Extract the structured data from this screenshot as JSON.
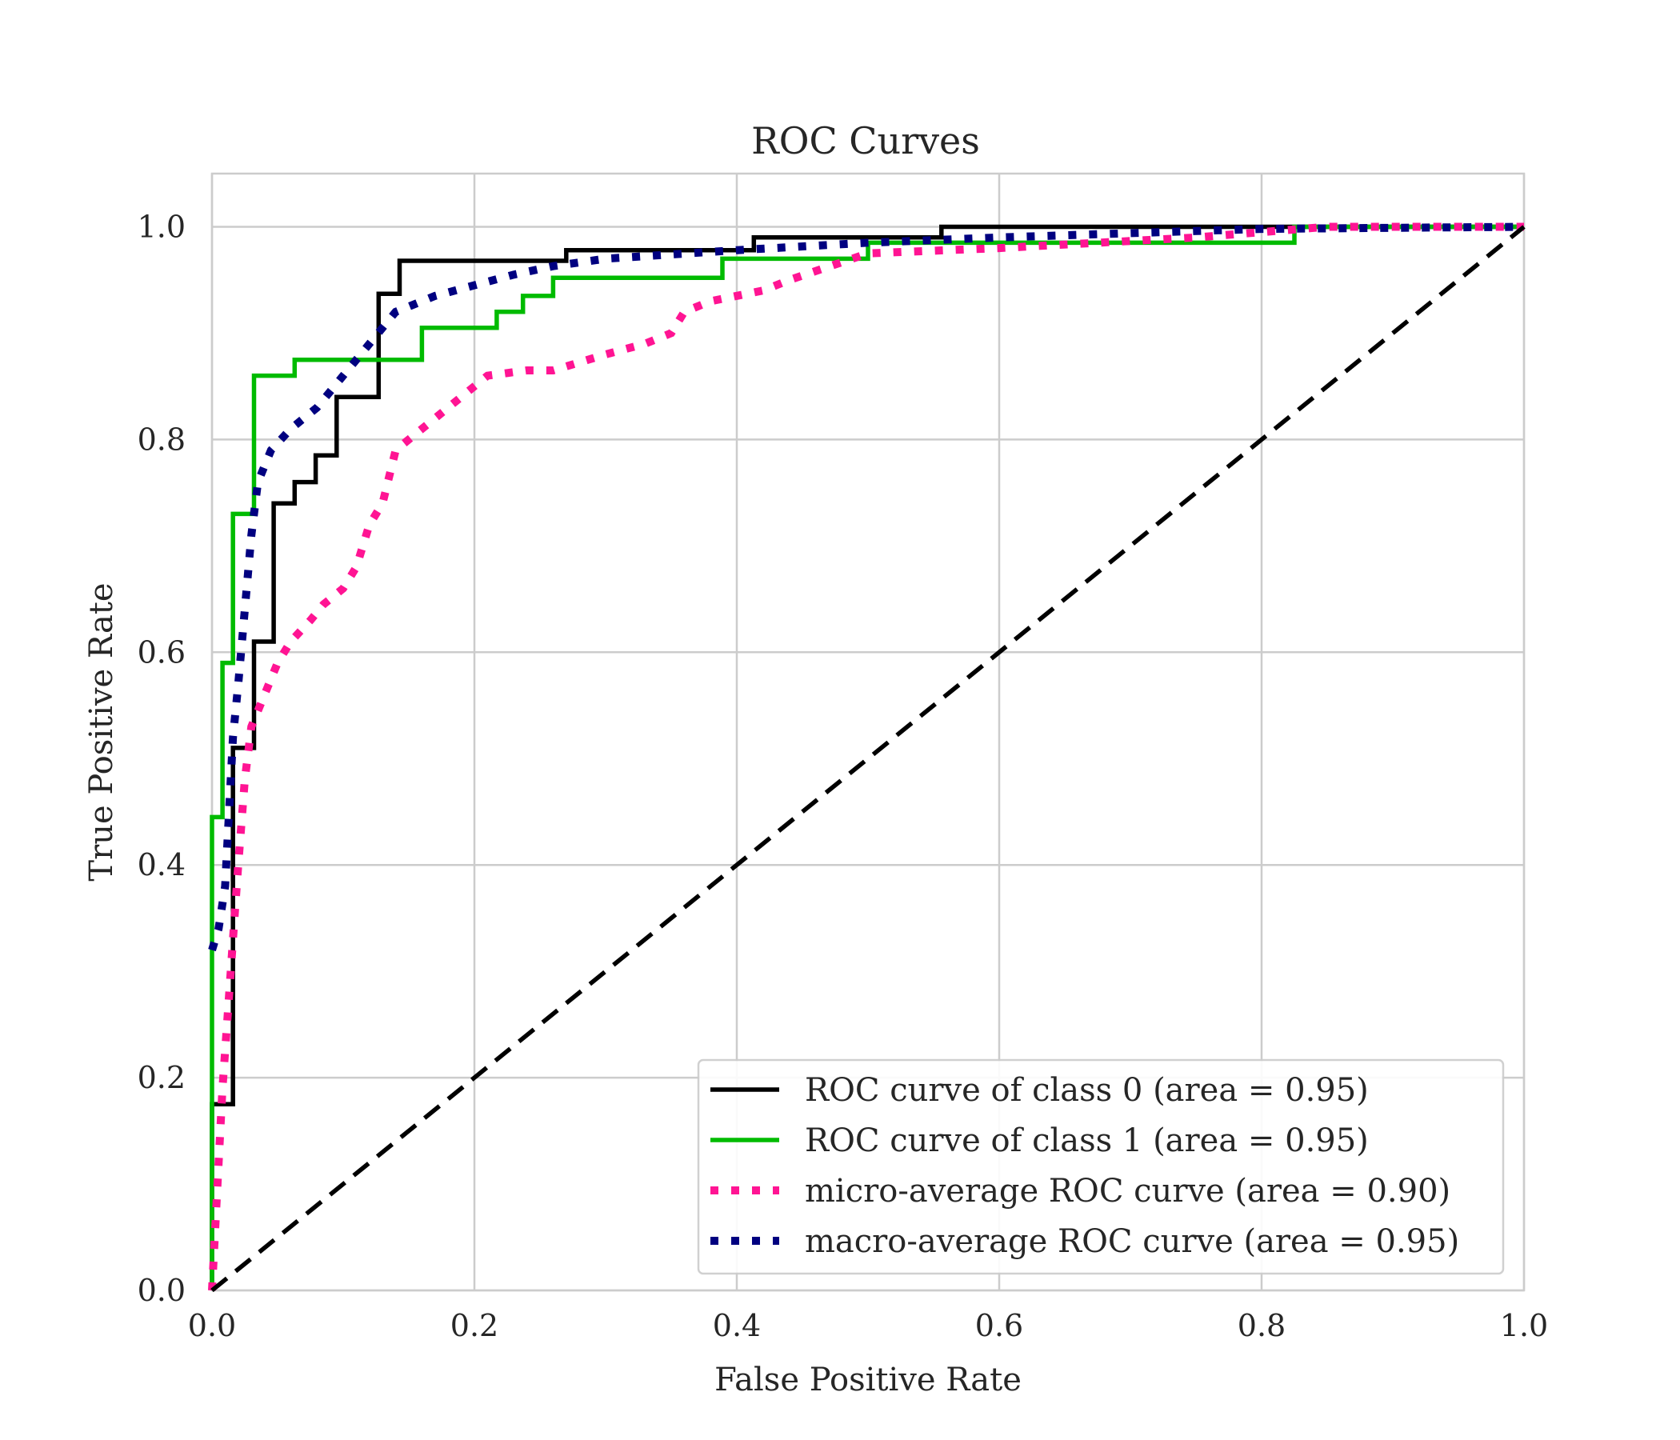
{
  "chart_data": {
    "type": "line",
    "title": "ROC Curves",
    "xlabel": "False Positive Rate",
    "ylabel": "True Positive Rate",
    "xlim": [
      0.0,
      1.0
    ],
    "ylim": [
      0.0,
      1.05
    ],
    "xticks": [
      "0.0",
      "0.2",
      "0.4",
      "0.6",
      "0.8",
      "1.0"
    ],
    "yticks": [
      "0.0",
      "0.2",
      "0.4",
      "0.6",
      "0.8",
      "1.0"
    ],
    "grid": true,
    "legend_position": "lower-right",
    "series": [
      {
        "name": "ROC curve of class 0 (area = 0.95)",
        "color": "#000000",
        "style": "solid",
        "x": [
          0.0,
          0.0,
          0.016,
          0.016,
          0.016,
          0.032,
          0.032,
          0.047,
          0.047,
          0.063,
          0.063,
          0.079,
          0.079,
          0.095,
          0.095,
          0.127,
          0.127,
          0.143,
          0.143,
          0.27,
          0.27,
          0.413,
          0.413,
          0.556,
          0.556,
          1.0
        ],
        "y": [
          0.0,
          0.175,
          0.175,
          0.51,
          0.51,
          0.51,
          0.61,
          0.61,
          0.74,
          0.74,
          0.76,
          0.76,
          0.785,
          0.785,
          0.84,
          0.84,
          0.937,
          0.937,
          0.968,
          0.968,
          0.978,
          0.978,
          0.99,
          0.99,
          1.0,
          1.0
        ]
      },
      {
        "name": "ROC curve of class 1 (area = 0.95)",
        "color": "#00bb00",
        "style": "solid",
        "x": [
          0.0,
          0.0,
          0.008,
          0.008,
          0.016,
          0.016,
          0.032,
          0.032,
          0.063,
          0.063,
          0.16,
          0.16,
          0.217,
          0.217,
          0.237,
          0.237,
          0.26,
          0.26,
          0.389,
          0.389,
          0.5,
          0.5,
          0.825,
          0.825,
          1.0
        ],
        "y": [
          0.0,
          0.445,
          0.445,
          0.59,
          0.59,
          0.73,
          0.73,
          0.86,
          0.86,
          0.875,
          0.875,
          0.905,
          0.905,
          0.92,
          0.92,
          0.935,
          0.935,
          0.952,
          0.952,
          0.97,
          0.97,
          0.985,
          0.985,
          1.0,
          1.0
        ]
      },
      {
        "name": "micro-average ROC curve (area = 0.90)",
        "color": "#ff1493",
        "style": "dotted",
        "x": [
          0.0,
          0.008,
          0.012,
          0.016,
          0.02,
          0.025,
          0.03,
          0.04,
          0.05,
          0.06,
          0.075,
          0.085,
          0.1,
          0.11,
          0.12,
          0.13,
          0.14,
          0.15,
          0.16,
          0.18,
          0.2,
          0.21,
          0.24,
          0.26,
          0.3,
          0.33,
          0.35,
          0.36,
          0.38,
          0.42,
          0.44,
          0.5,
          0.6,
          0.75,
          0.85,
          1.0
        ],
        "y": [
          0.0,
          0.19,
          0.26,
          0.33,
          0.4,
          0.48,
          0.53,
          0.56,
          0.59,
          0.61,
          0.63,
          0.645,
          0.66,
          0.68,
          0.72,
          0.74,
          0.79,
          0.8,
          0.81,
          0.83,
          0.85,
          0.86,
          0.865,
          0.865,
          0.88,
          0.89,
          0.9,
          0.92,
          0.93,
          0.94,
          0.95,
          0.975,
          0.98,
          0.99,
          1.0,
          1.0
        ]
      },
      {
        "name": "macro-average ROC curve (area = 0.95)",
        "color": "#000080",
        "style": "dotted",
        "x": [
          0.0,
          0.005,
          0.01,
          0.013,
          0.016,
          0.02,
          0.025,
          0.03,
          0.035,
          0.045,
          0.06,
          0.08,
          0.1,
          0.12,
          0.14,
          0.17,
          0.2,
          0.23,
          0.26,
          0.3,
          0.4,
          0.5,
          0.6,
          0.8,
          1.0
        ],
        "y": [
          0.32,
          0.34,
          0.38,
          0.45,
          0.52,
          0.57,
          0.64,
          0.71,
          0.76,
          0.79,
          0.81,
          0.83,
          0.86,
          0.89,
          0.92,
          0.935,
          0.945,
          0.955,
          0.963,
          0.97,
          0.978,
          0.985,
          0.99,
          0.998,
          1.0
        ]
      },
      {
        "name": "",
        "color": "#000000",
        "style": "dashed",
        "x": [
          0.0,
          1.0
        ],
        "y": [
          0.0,
          1.0
        ]
      }
    ]
  }
}
